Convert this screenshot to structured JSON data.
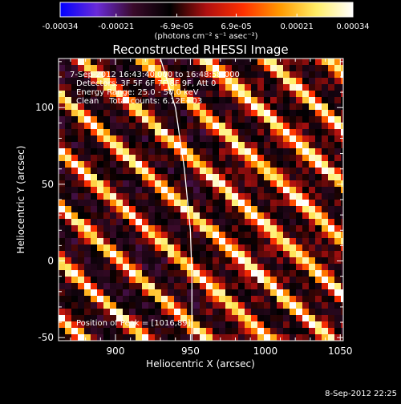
{
  "colorbar": {
    "tick_labels": [
      "-0.00034",
      "-0.00021",
      "-6.9e-05",
      "6.9e-05",
      "0.00021",
      "0.00034"
    ],
    "unit_label": "(photons cm⁻² s⁻¹ asec⁻²)",
    "range": [
      -0.00034,
      0.00034
    ],
    "colors": [
      "#0000ff",
      "#6a2bd9",
      "#3a0a2a",
      "#000000",
      "#b01010",
      "#ff3000",
      "#ff9900",
      "#ffee66",
      "#ffffff"
    ]
  },
  "chart_data": {
    "type": "heatmap",
    "title": "Reconstructed RHESSI Image",
    "xlabel": "Heliocentric X (arcsec)",
    "ylabel": "Heliocentric Y (arcsec)",
    "xlim": [
      862,
      1052
    ],
    "ylim": [
      -52,
      132
    ],
    "x_ticks": [
      900,
      950,
      1000,
      1050
    ],
    "y_ticks": [
      -50,
      0,
      50,
      100
    ],
    "x_tick_labels": [
      "900",
      "950",
      "1000",
      "1050"
    ],
    "y_tick_labels": [
      "-50",
      "0",
      "50",
      "100"
    ],
    "limb_curve": [
      [
        930,
        132
      ],
      [
        940,
        100
      ],
      [
        946,
        60
      ],
      [
        950,
        20
      ],
      [
        951,
        -10
      ],
      [
        951,
        -52
      ]
    ],
    "grid": false,
    "legend": "none",
    "annotations": [
      "7-Sep-2012 16:43:40.000 to 16:48:58.000",
      "Detectors: 3F 5F 6F 7F 8F 9F, Att 0",
      "Energy Range: 25.0 - 50.0 keV",
      "Clean    Total counts: 6.12E+03"
    ],
    "peak_label": "Position of Peak = [1016,89]",
    "peak_position": [
      1016,
      89
    ]
  },
  "footer": {
    "timestamp": "8-Sep-2012 22:25"
  }
}
